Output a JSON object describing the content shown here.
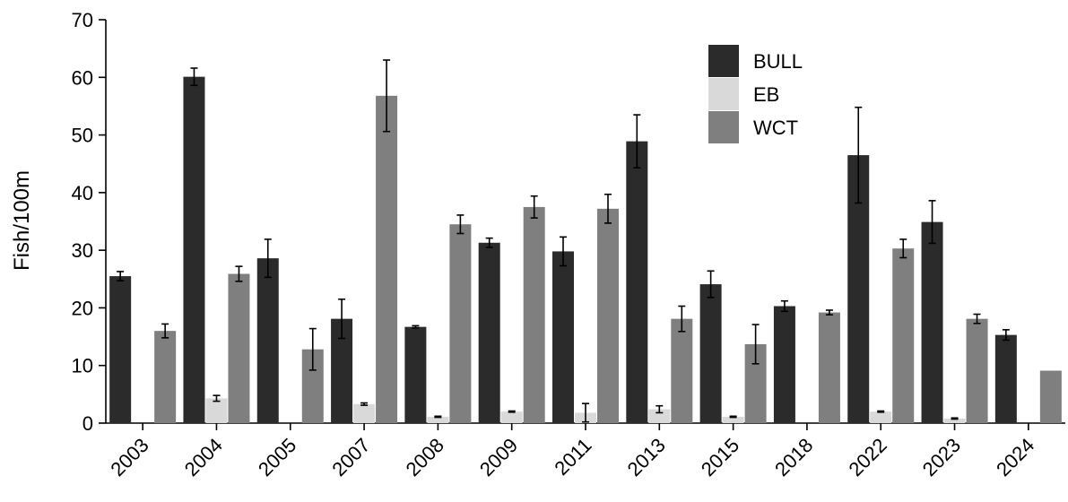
{
  "chart_data": {
    "type": "bar",
    "title": "",
    "xlabel": "",
    "ylabel": "Fish/100m",
    "ylim": [
      0,
      70
    ],
    "yticks": [
      0,
      10,
      20,
      30,
      40,
      50,
      60,
      70
    ],
    "grid": false,
    "legend_position": "top-right",
    "categories": [
      "2003",
      "2004",
      "2005",
      "2007",
      "2008",
      "2009",
      "2011",
      "2013",
      "2015",
      "2018",
      "2022",
      "2023",
      "2024"
    ],
    "series": [
      {
        "name": "BULL",
        "color": "#2b2b2b",
        "values": [
          25.5,
          60.1,
          28.6,
          18.1,
          16.7,
          31.3,
          29.8,
          48.9,
          24.1,
          20.3,
          46.5,
          34.9,
          15.3
        ],
        "errors": [
          0.8,
          1.5,
          3.3,
          3.4,
          0.2,
          0.8,
          2.5,
          4.6,
          2.3,
          0.9,
          8.3,
          3.7,
          0.9
        ]
      },
      {
        "name": "EB",
        "color": "#d9d9d9",
        "values": [
          0,
          4.3,
          0,
          3.3,
          1.1,
          2.0,
          1.8,
          2.4,
          1.1,
          0,
          2.0,
          0.8,
          0
        ],
        "errors": [
          0,
          0.5,
          0,
          0.2,
          0.1,
          0.1,
          1.6,
          0.6,
          0.1,
          0,
          0.1,
          0.1,
          0
        ]
      },
      {
        "name": "WCT",
        "color": "#7f7f7f",
        "values": [
          16.0,
          25.9,
          12.8,
          56.8,
          34.5,
          37.5,
          37.2,
          18.1,
          13.7,
          19.2,
          30.3,
          18.1,
          9.1
        ],
        "errors": [
          1.2,
          1.3,
          3.6,
          6.2,
          1.6,
          1.9,
          2.5,
          2.2,
          3.4,
          0.4,
          1.6,
          0.8,
          0
        ]
      }
    ]
  }
}
